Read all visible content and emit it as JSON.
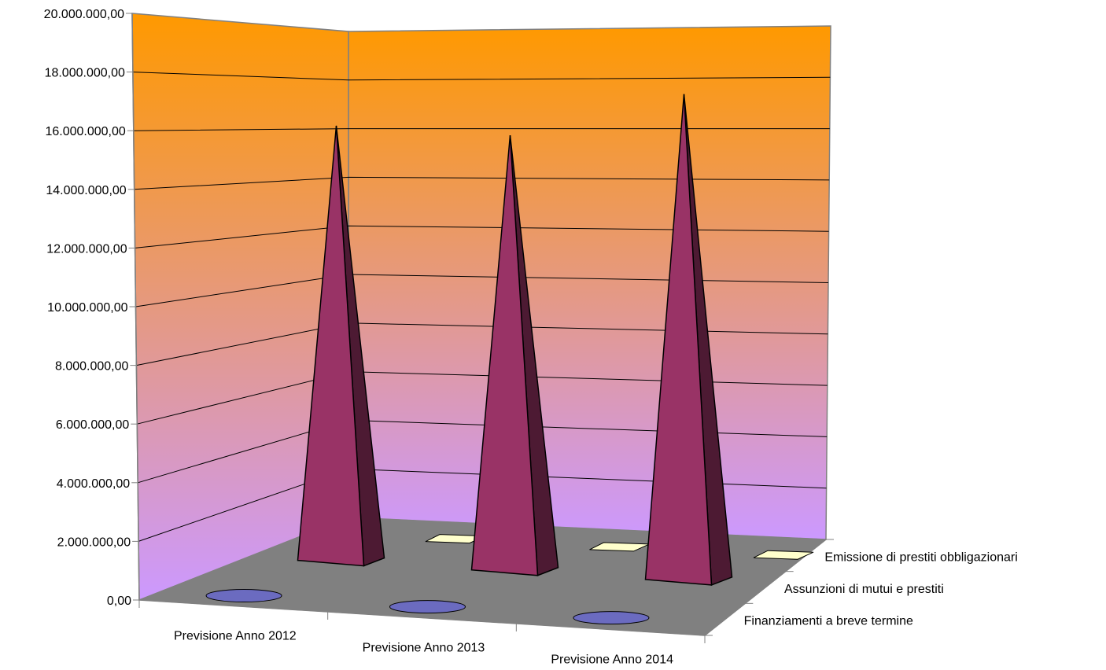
{
  "chart_data": {
    "type": "bar",
    "style": "3d-pyramid",
    "categories": [
      "Previsione Anno 2012",
      "Previsione Anno 2013",
      "Previsione Anno 2014"
    ],
    "series": [
      {
        "name": "Finanziamenti a breve termine",
        "values": [
          0,
          0,
          0
        ],
        "color": "#6b6bc0"
      },
      {
        "name": "Assunzioni di mutui e prestiti",
        "values": [
          16400000,
          16400000,
          18300000
        ],
        "color": "#993366"
      },
      {
        "name": "Emissione di prestiti obbligazionari",
        "values": [
          0,
          0,
          0
        ],
        "color": "#ffffcc"
      }
    ],
    "y_ticks": [
      "0,00",
      "2.000.000,00",
      "4.000.000,00",
      "6.000.000,00",
      "8.000.000,00",
      "10.000.000,00",
      "12.000.000,00",
      "14.000.000,00",
      "16.000.000,00",
      "18.000.000,00",
      "20.000.000,00"
    ],
    "ylim": [
      0,
      20000000
    ],
    "grid": true,
    "wall_gradient": {
      "top": "#ff9900",
      "bottom": "#cc99ff"
    },
    "floor_color": "#808080"
  }
}
